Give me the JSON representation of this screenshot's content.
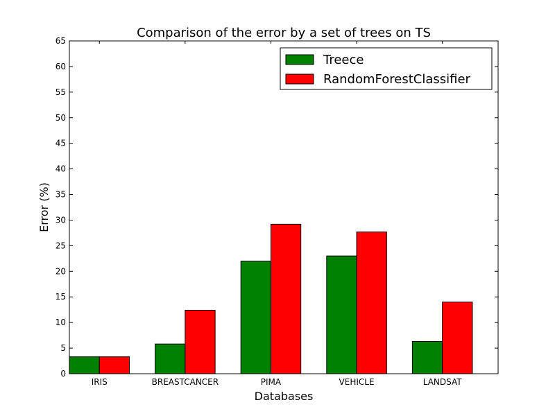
{
  "chart_data": {
    "type": "bar",
    "title": "Comparison of the error by a set of trees on TS",
    "xlabel": "Databases",
    "ylabel": "Error (%)",
    "categories": [
      "IRIS",
      "BREASTCANCER",
      "PIMA",
      "VEHICLE",
      "LANDSAT"
    ],
    "series": [
      {
        "name": "Treece",
        "color": "#008000",
        "values": [
          3.3,
          5.8,
          22.0,
          23.0,
          6.3
        ]
      },
      {
        "name": "RandomForestClassifier",
        "color": "#ff0000",
        "values": [
          3.3,
          12.4,
          29.2,
          27.7,
          14.0
        ]
      }
    ],
    "ylim": [
      0,
      65
    ],
    "yticks": [
      0,
      5,
      10,
      15,
      20,
      25,
      30,
      35,
      40,
      45,
      50,
      55,
      60,
      65
    ],
    "grid": false,
    "legend_position": "top-right"
  }
}
